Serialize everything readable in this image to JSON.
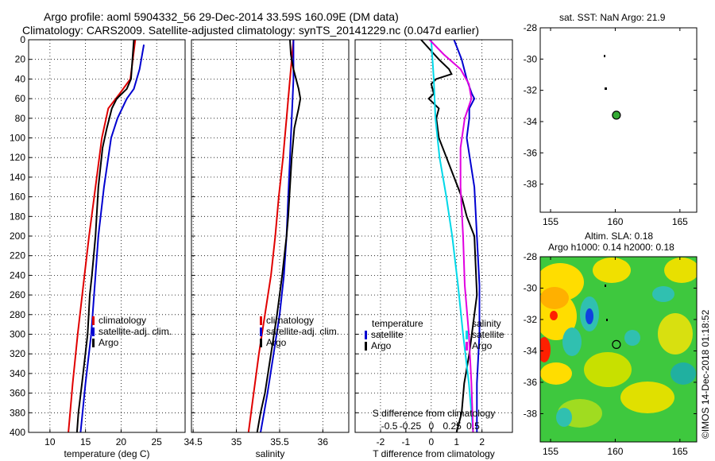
{
  "titles": {
    "line1": "Argo profile: aoml 5904332_56 29-Dec-2014 33.59S 160.09E (DM data)",
    "line2": "Climatology: CARS2009. Satellite-adjusted climatology: synTS_20141229.nc (0.047d earlier)",
    "sst": "sat. SST: NaN Argo: 21.9",
    "sla1": "Altim. SLA: 0.18",
    "sla2": "Argo h1000: 0.14 h2000: 0.18",
    "credit": "©IMOS 14-Dec-2018 01:18:52"
  },
  "colors": {
    "clim": "#e00000",
    "sat": "#0000d0",
    "argo": "#000000",
    "sal_diff": "#e000e0",
    "sal_sat": "#00d8e8"
  },
  "chart_data": [
    {
      "type": "line",
      "name": "temperature",
      "xlabel": "temperature (deg C)",
      "ylabel": "",
      "xlim": [
        7,
        29
      ],
      "ylim": [
        400,
        0
      ],
      "xticks": [
        10,
        15,
        20,
        25
      ],
      "yticks": [
        0,
        20,
        40,
        60,
        80,
        100,
        120,
        140,
        160,
        180,
        200,
        220,
        240,
        260,
        280,
        300,
        320,
        340,
        360,
        380,
        400
      ],
      "legend": [
        "climatology",
        "satellite-adj. clim.",
        "Argo"
      ],
      "series": [
        {
          "name": "climatology",
          "color_key": "clim",
          "depth": [
            0,
            40,
            55,
            70,
            100,
            150,
            200,
            250,
            300,
            350,
            400
          ],
          "values": [
            22.0,
            21.3,
            19.8,
            18.2,
            17.3,
            16.4,
            15.5,
            14.7,
            13.9,
            13.2,
            12.6
          ]
        },
        {
          "name": "satellite-adj. clim.",
          "color_key": "sat",
          "depth": [
            5,
            30,
            50,
            60,
            80,
            100,
            150,
            200,
            250,
            300,
            350,
            400
          ],
          "values": [
            23.2,
            22.6,
            21.8,
            20.8,
            19.5,
            18.6,
            17.6,
            16.8,
            16.3,
            15.8,
            15.0,
            14.3
          ]
        },
        {
          "name": "Argo",
          "color_key": "argo",
          "depth": [
            0,
            20,
            40,
            50,
            60,
            70,
            90,
            110,
            150,
            200,
            240,
            260,
            300,
            350,
            380,
            400
          ],
          "values": [
            21.8,
            21.6,
            21.4,
            20.8,
            19.4,
            18.7,
            18.0,
            17.4,
            16.8,
            16.4,
            15.9,
            15.6,
            15.3,
            14.5,
            14.0,
            13.8
          ]
        }
      ]
    },
    {
      "type": "line",
      "name": "salinity",
      "xlabel": "salinity",
      "ylabel": "",
      "xlim": [
        34.48,
        36.3
      ],
      "xticks": [
        34.5,
        35,
        35.5,
        36
      ],
      "legend": [
        "climatology",
        "satellite-adj. clim.",
        "Argo"
      ],
      "series": [
        {
          "name": "climatology",
          "color_key": "clim",
          "depth": [
            0,
            40,
            80,
            120,
            160,
            200,
            240,
            280,
            320,
            360,
            400
          ],
          "values": [
            35.66,
            35.62,
            35.58,
            35.54,
            35.49,
            35.45,
            35.4,
            35.33,
            35.26,
            35.2,
            35.14
          ]
        },
        {
          "name": "satellite-adj. clim.",
          "color_key": "sat",
          "depth": [
            0,
            40,
            80,
            120,
            160,
            200,
            240,
            280,
            320,
            360,
            400
          ],
          "values": [
            35.66,
            35.66,
            35.64,
            35.62,
            35.6,
            35.58,
            35.55,
            35.5,
            35.43,
            35.36,
            35.28
          ]
        },
        {
          "name": "Argo",
          "color_key": "argo",
          "depth": [
            0,
            15,
            30,
            50,
            60,
            70,
            90,
            120,
            150,
            180,
            200,
            240,
            280,
            320,
            360,
            380,
            400
          ],
          "values": [
            35.62,
            35.63,
            35.66,
            35.72,
            35.74,
            35.72,
            35.67,
            35.64,
            35.62,
            35.6,
            35.58,
            35.53,
            35.47,
            35.4,
            35.33,
            35.28,
            35.24
          ]
        }
      ]
    },
    {
      "type": "line",
      "name": "difference",
      "xlabel": "T difference from climatology",
      "ylabel": "",
      "xlim": [
        -3,
        3.2
      ],
      "xticks": [
        -2,
        -1,
        0,
        1,
        2
      ],
      "s_xlabel": "S difference from climatology",
      "s_xticks": [
        "-0.5",
        "-0.25",
        "0",
        "0.25",
        "0.5"
      ],
      "legend_left_title": "temperature",
      "legend_right_title": "salinity",
      "legend_left": [
        "satellite",
        "Argo"
      ],
      "legend_right": [
        "satellite",
        "Argo"
      ],
      "series": [
        {
          "name": "T satellite",
          "color_key": "sat",
          "depth": [
            0,
            20,
            40,
            55,
            60,
            70,
            80,
            100,
            150,
            200,
            250,
            300,
            350,
            400
          ],
          "values": [
            0.9,
            1.2,
            1.4,
            1.6,
            1.7,
            1.5,
            1.5,
            1.4,
            1.7,
            1.8,
            1.9,
            1.9,
            1.8,
            1.8
          ]
        },
        {
          "name": "T Argo",
          "color_key": "argo",
          "depth": [
            0,
            20,
            30,
            35,
            40,
            45,
            55,
            60,
            70,
            80,
            100,
            120,
            140,
            160,
            180,
            200,
            230,
            260,
            280,
            300,
            320,
            350,
            380,
            400
          ],
          "values": [
            -0.4,
            0.3,
            0.7,
            0.8,
            0.2,
            0.0,
            0.1,
            -0.1,
            0.3,
            0.2,
            0.3,
            0.6,
            0.9,
            1.2,
            1.4,
            1.7,
            1.75,
            1.8,
            1.7,
            1.6,
            1.5,
            1.3,
            1.2,
            1.0
          ]
        },
        {
          "name": "S satellite",
          "color_key": "sal_sat",
          "depth": [
            0,
            40,
            80,
            120,
            160,
            200,
            250,
            300,
            350,
            400
          ],
          "values": [
            0.0,
            0.03,
            0.05,
            0.1,
            0.18,
            0.25,
            0.32,
            0.38,
            0.45,
            0.5
          ]
        },
        {
          "name": "S Argo",
          "color_key": "sal_diff",
          "depth": [
            0,
            15,
            30,
            45,
            60,
            80,
            110,
            150,
            200,
            250,
            300,
            350,
            400
          ],
          "values": [
            -0.02,
            0.15,
            0.35,
            0.45,
            0.48,
            0.4,
            0.35,
            0.35,
            0.38,
            0.4,
            0.45,
            0.48,
            0.5
          ]
        }
      ]
    },
    {
      "type": "scatter",
      "name": "sst_map",
      "xlim": [
        154.2,
        166.3
      ],
      "ylim": [
        -39.8,
        -28
      ],
      "xticks": [
        155,
        160,
        165
      ],
      "yticks": [
        -28,
        -30,
        -32,
        -34,
        -36,
        -38
      ],
      "points": [
        {
          "x": 160.09,
          "y": -33.59,
          "label": "Argo"
        }
      ]
    },
    {
      "type": "heatmap",
      "name": "sla_map",
      "xlim": [
        154.2,
        166.3
      ],
      "ylim": [
        -39.8,
        -28
      ],
      "xticks": [
        155,
        160,
        165
      ],
      "yticks": [
        -28,
        -30,
        -32,
        -34,
        -36,
        -38
      ],
      "points": [
        {
          "x": 160.09,
          "y": -33.59,
          "label": "Argo"
        }
      ]
    }
  ]
}
